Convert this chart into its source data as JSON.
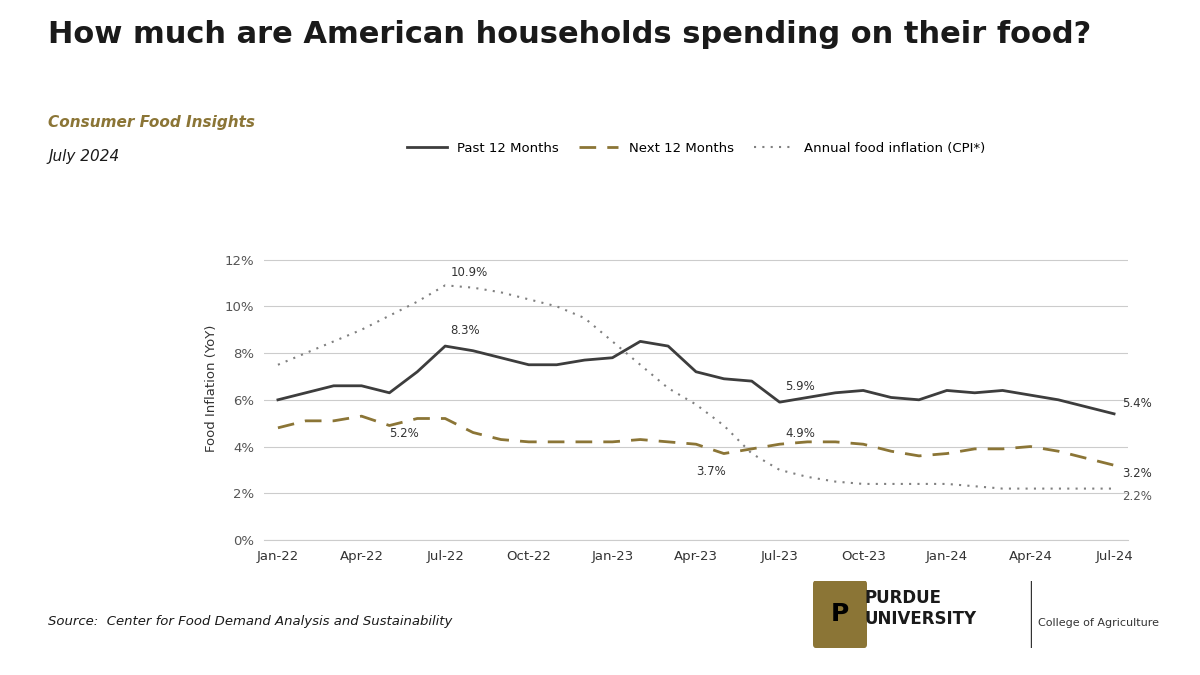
{
  "title": "How much are American households spending on their food?",
  "subtitle1": "Consumer Food Insights",
  "subtitle2": "July 2024",
  "title_color": "#1a1a1a",
  "subtitle1_color": "#8B7536",
  "subtitle2_color": "#1a1a1a",
  "xlabel": "",
  "ylabel": "Food Inflation (YoY)",
  "x_labels": [
    "Jan-22",
    "Apr-22",
    "Jul-22",
    "Oct-22",
    "Jan-23",
    "Apr-23",
    "Jul-23",
    "Oct-23",
    "Jan-24",
    "Apr-24",
    "Jul-24"
  ],
  "past12_values": [
    6.0,
    6.6,
    8.3,
    7.5,
    7.7,
    8.5,
    6.9,
    5.9,
    6.3,
    6.4,
    6.0,
    6.5,
    6.4,
    5.4
  ],
  "next12_values": [
    4.8,
    5.1,
    4.6,
    5.2,
    4.1,
    4.2,
    4.2,
    4.3,
    3.7,
    4.1,
    4.2,
    3.6,
    3.9,
    4.0,
    3.5,
    3.2
  ],
  "cpi_values": [
    7.5,
    8.5,
    9.1,
    10.9,
    10.4,
    10.1,
    9.9,
    8.5,
    6.5,
    5.8,
    3.7,
    2.4,
    2.4,
    2.2,
    2.2
  ],
  "past12_color": "#3d3d3d",
  "next12_color": "#8B7536",
  "cpi_color": "#808080",
  "source_text": "Source:  Center for Food Demand Analysis and Sustainability",
  "footer_color": "#1a1a1a",
  "ylim": [
    0,
    13
  ],
  "yticks": [
    0,
    2,
    4,
    6,
    8,
    10,
    12
  ],
  "annotations": {
    "past12": {
      "Jul-22": "8.3%",
      "Apr-22": null,
      "Jul-23": "5.9%",
      "Jul-24": "5.4%"
    },
    "next12": {
      "Jul-22": "5.2%",
      "Jul-23": "4.9%",
      "Jul-24": "3.2%"
    },
    "cpi": {
      "Jul-22": "10.9%",
      "Apr-23": "3.7%",
      "Jul-24": "2.2%"
    }
  }
}
